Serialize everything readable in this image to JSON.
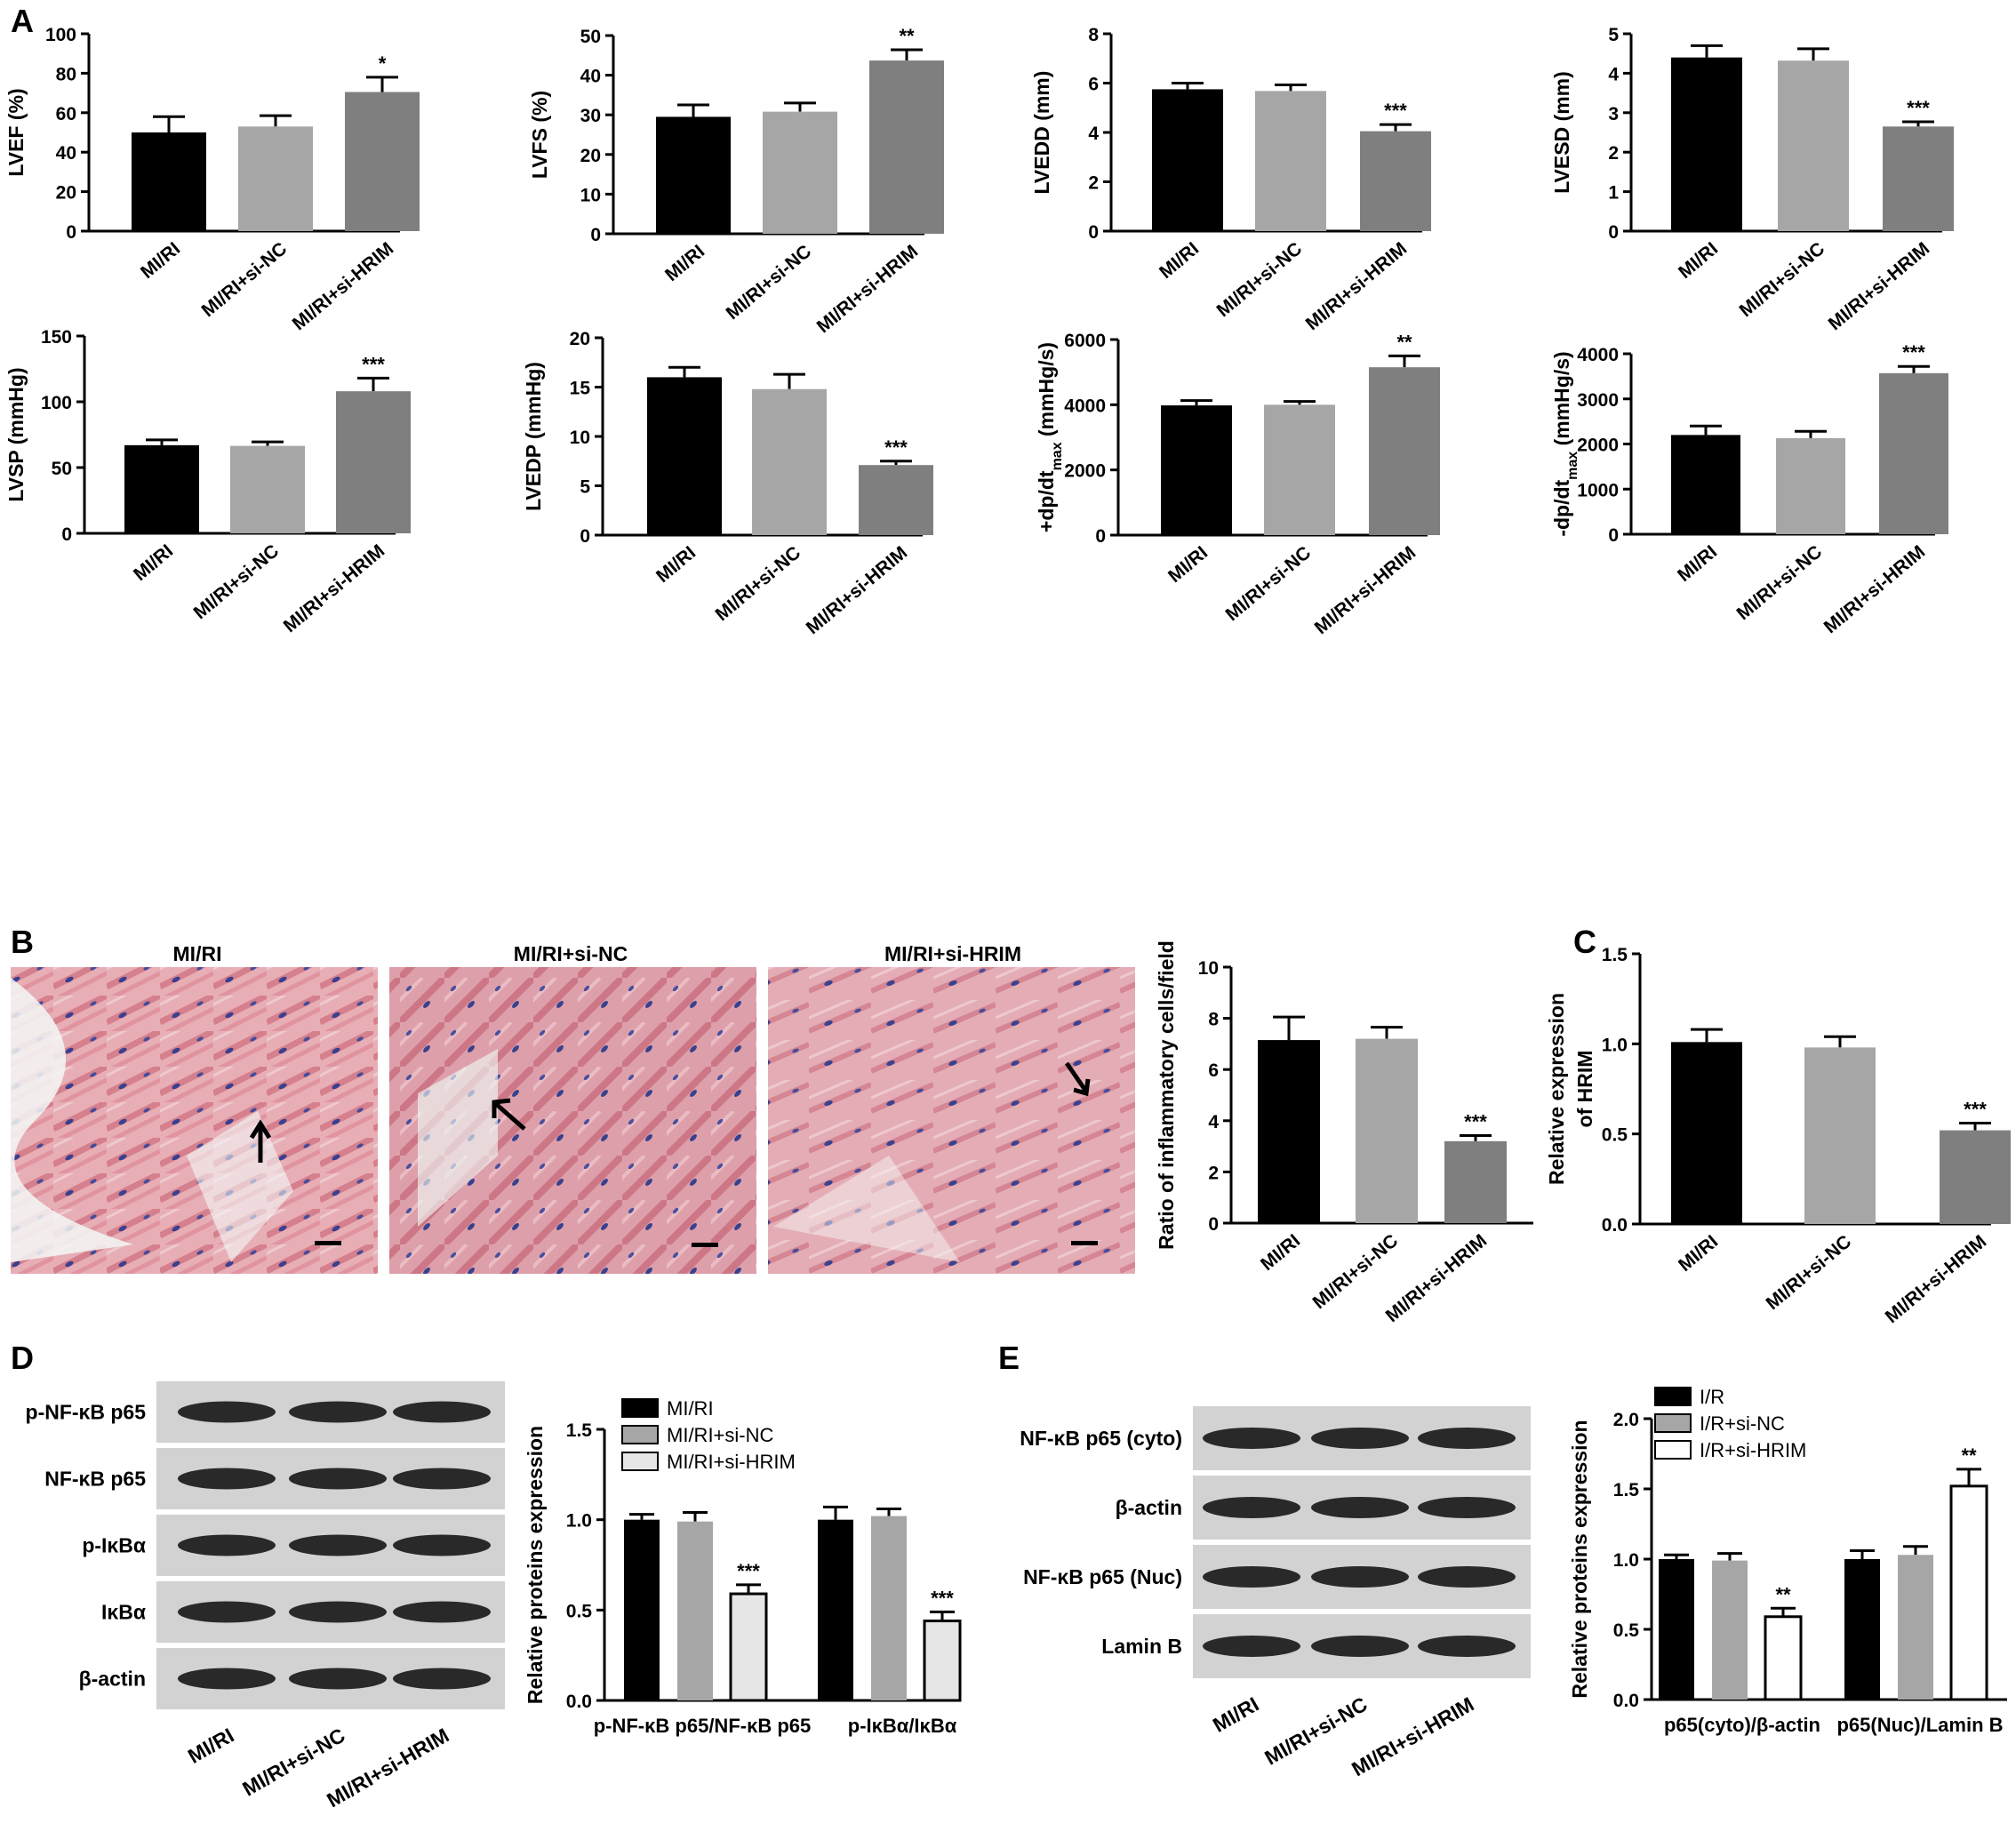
{
  "panel_labels": {
    "a": "A",
    "b": "B",
    "c": "C",
    "d": "D",
    "e": "E"
  },
  "groups": [
    "MI/RI",
    "MI/RI+si-NC",
    "MI/RI+si-HRIM"
  ],
  "colors": {
    "black": "#000000",
    "light_gray": "#a6a6a6",
    "dark_gray": "#7f7f7f",
    "white": "#ffffff",
    "pale": "#e6e6e6"
  },
  "chart_data": [
    {
      "id": "lvef",
      "type": "bar",
      "ylabel": "LVEF (%)",
      "ylim": [
        0,
        100
      ],
      "yticks": [
        0,
        20,
        40,
        60,
        80,
        100
      ],
      "categories": [
        "MI/RI",
        "MI/RI+si-NC",
        "MI/RI+si-HRIM"
      ],
      "values": [
        50,
        53,
        70.5
      ],
      "errors": [
        8,
        5.5,
        7.5
      ],
      "sig": [
        "",
        "",
        "*"
      ]
    },
    {
      "id": "lvfs",
      "type": "bar",
      "ylabel": "LVFS (%)",
      "ylim": [
        0,
        50
      ],
      "yticks": [
        0,
        10,
        20,
        30,
        40,
        50
      ],
      "categories": [
        "MI/RI",
        "MI/RI+si-NC",
        "MI/RI+si-HRIM"
      ],
      "values": [
        29.5,
        30.8,
        43.7
      ],
      "errors": [
        3,
        2.2,
        2.7
      ],
      "sig": [
        "",
        "",
        "**"
      ]
    },
    {
      "id": "lvedd",
      "type": "bar",
      "ylabel": "LVEDD (mm)",
      "ylim": [
        0,
        8
      ],
      "yticks": [
        0,
        2,
        4,
        6,
        8
      ],
      "categories": [
        "MI/RI",
        "MI/RI+si-NC",
        "MI/RI+si-HRIM"
      ],
      "values": [
        5.75,
        5.68,
        4.05
      ],
      "errors": [
        0.25,
        0.25,
        0.27
      ],
      "sig": [
        "",
        "",
        "***"
      ]
    },
    {
      "id": "lvesd",
      "type": "bar",
      "ylabel": "LVESD (mm)",
      "ylim": [
        0,
        5
      ],
      "yticks": [
        0,
        1,
        2,
        3,
        4,
        5
      ],
      "categories": [
        "MI/RI",
        "MI/RI+si-NC",
        "MI/RI+si-HRIM"
      ],
      "values": [
        4.4,
        4.32,
        2.65
      ],
      "errors": [
        0.3,
        0.3,
        0.12
      ],
      "sig": [
        "",
        "",
        "***"
      ]
    },
    {
      "id": "lvsp",
      "type": "bar",
      "ylabel": "LVSP (mmHg)",
      "ylim": [
        0,
        150
      ],
      "yticks": [
        0,
        50,
        100,
        150
      ],
      "categories": [
        "MI/RI",
        "MI/RI+si-NC",
        "MI/RI+si-HRIM"
      ],
      "values": [
        67,
        66.5,
        108
      ],
      "errors": [
        4,
        3,
        10
      ],
      "sig": [
        "",
        "",
        "***"
      ]
    },
    {
      "id": "lvedp",
      "type": "bar",
      "ylabel": "LVEDP (mmHg)",
      "ylim": [
        0,
        20
      ],
      "yticks": [
        0,
        5,
        10,
        15,
        20
      ],
      "categories": [
        "MI/RI",
        "MI/RI+si-NC",
        "MI/RI+si-HRIM"
      ],
      "values": [
        16,
        14.8,
        7.1
      ],
      "errors": [
        1,
        1.5,
        0.4
      ],
      "sig": [
        "",
        "",
        "***"
      ]
    },
    {
      "id": "dpdt_pos",
      "type": "bar",
      "ylabel": "+dp/dtmax (mmHg/s)",
      "ylim": [
        0,
        6000
      ],
      "yticks": [
        0,
        2000,
        4000,
        6000
      ],
      "categories": [
        "MI/RI",
        "MI/RI+si-NC",
        "MI/RI+si-HRIM"
      ],
      "values": [
        3980,
        4000,
        5150
      ],
      "errors": [
        150,
        100,
        350
      ],
      "sig": [
        "",
        "",
        "**"
      ]
    },
    {
      "id": "dpdt_neg",
      "type": "bar",
      "ylabel": "-dp/dtmax (mmHg/s)",
      "ylim": [
        0,
        4000
      ],
      "yticks": [
        0,
        1000,
        2000,
        3000,
        4000
      ],
      "categories": [
        "MI/RI",
        "MI/RI+si-NC",
        "MI/RI+si-HRIM"
      ],
      "values": [
        2200,
        2130,
        3570
      ],
      "errors": [
        200,
        150,
        150
      ],
      "sig": [
        "",
        "",
        "***"
      ]
    },
    {
      "id": "inflam",
      "type": "bar",
      "ylabel": "Ratio of inflammatory cells/field",
      "ylim": [
        0,
        10
      ],
      "yticks": [
        0,
        2,
        4,
        6,
        8,
        10
      ],
      "categories": [
        "MI/RI",
        "MI/RI+si-NC",
        "MI/RI+si-HRIM"
      ],
      "values": [
        7.15,
        7.2,
        3.2
      ],
      "errors": [
        0.9,
        0.45,
        0.22
      ],
      "sig": [
        "",
        "",
        "***"
      ]
    },
    {
      "id": "hrim",
      "type": "bar",
      "ylabel": "Relative expression of HRIM",
      "ylim": [
        0,
        1.5
      ],
      "yticks": [
        "0.0",
        "0.5",
        "1.0",
        "1.5"
      ],
      "categories": [
        "MI/RI",
        "MI/RI+si-NC",
        "MI/RI+si-HRIM"
      ],
      "values": [
        1.01,
        0.98,
        0.52
      ],
      "errors": [
        0.07,
        0.06,
        0.04
      ],
      "sig": [
        "",
        "",
        "***"
      ]
    },
    {
      "id": "protein_d",
      "type": "bar",
      "ylabel": "Relative proteins expression",
      "ylim": [
        0,
        1.5
      ],
      "yticks": [
        "0.0",
        "0.5",
        "1.0",
        "1.5"
      ],
      "categories": [
        "p-NF-κB p65/NF-κB p65",
        "p-IκBα/IκBα"
      ],
      "series": [
        {
          "name": "MI/RI",
          "values": [
            1.0,
            1.0
          ],
          "errors": [
            0.03,
            0.07
          ],
          "sig": [
            "",
            ""
          ]
        },
        {
          "name": "MI/RI+si-NC",
          "values": [
            0.99,
            1.02
          ],
          "errors": [
            0.05,
            0.04
          ],
          "sig": [
            "",
            ""
          ]
        },
        {
          "name": "MI/RI+si-HRIM",
          "values": [
            0.59,
            0.44
          ],
          "errors": [
            0.05,
            0.05
          ],
          "sig": [
            "***",
            "***"
          ]
        }
      ]
    },
    {
      "id": "protein_e",
      "type": "bar",
      "ylabel": "Relative proteins expression",
      "ylim": [
        0,
        2.0
      ],
      "yticks": [
        "0.0",
        "0.5",
        "1.0",
        "1.5",
        "2.0"
      ],
      "categories": [
        "p65(cyto)/β-actin",
        "p65(Nuc)/Lamin B"
      ],
      "series": [
        {
          "name": "I/R",
          "values": [
            1.0,
            1.0
          ],
          "errors": [
            0.03,
            0.06
          ],
          "sig": [
            "",
            ""
          ]
        },
        {
          "name": "I/R+si-NC",
          "values": [
            0.99,
            1.03
          ],
          "errors": [
            0.05,
            0.06
          ],
          "sig": [
            "",
            ""
          ]
        },
        {
          "name": "I/R+si-HRIM",
          "values": [
            0.59,
            1.52
          ],
          "errors": [
            0.06,
            0.12
          ],
          "sig": [
            "**",
            "**"
          ]
        }
      ]
    }
  ],
  "histology": {
    "titles": [
      "MI/RI",
      "MI/RI+si-NC",
      "MI/RI+si-HRIM"
    ]
  },
  "blot_d": {
    "rows": [
      "p-NF-κB p65",
      "NF-κB p65",
      "p-IκBα",
      "IκBα",
      "β-actin"
    ],
    "lanes": [
      "MI/RI",
      "MI/RI+si-NC",
      "MI/RI+si-HRIM"
    ]
  },
  "blot_e": {
    "rows": [
      "NF-κB p65 (cyto)",
      "β-actin",
      "NF-κB p65 (Nuc)",
      "Lamin B"
    ],
    "lanes": [
      "MI/RI",
      "MI/RI+si-NC",
      "MI/RI+si-HRIM"
    ]
  }
}
